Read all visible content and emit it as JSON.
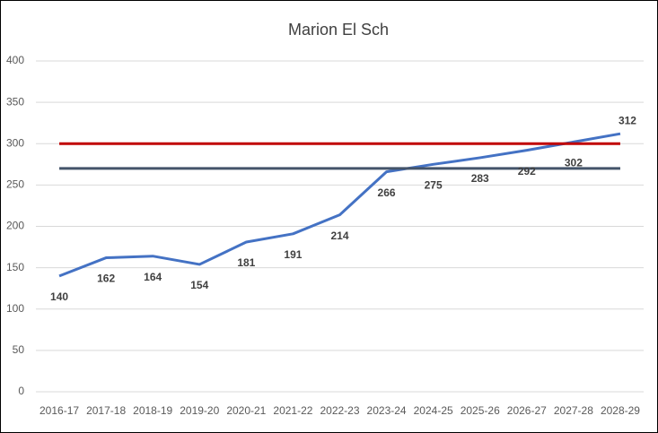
{
  "chart_data": {
    "type": "line",
    "title": "Marion El Sch",
    "categories": [
      "2016-17",
      "2017-18",
      "2018-19",
      "2019-20",
      "2020-21",
      "2021-22",
      "2022-23",
      "2023-24",
      "2024-25",
      "2025-26",
      "2026-27",
      "2027-28",
      "2028-29"
    ],
    "series": [
      {
        "color": "#4472c4",
        "values": [
          140,
          162,
          164,
          154,
          181,
          191,
          214,
          266,
          275,
          283,
          292,
          302,
          312
        ],
        "data_labels": true
      },
      {
        "color": "#c00000",
        "values": [
          300,
          300,
          300,
          300,
          300,
          300,
          300,
          300,
          300,
          300,
          300,
          300,
          300
        ]
      },
      {
        "color": "#44546a",
        "values": [
          270,
          270,
          270,
          270,
          270,
          270,
          270,
          270,
          270,
          270,
          270,
          270,
          270
        ]
      }
    ],
    "ylim": [
      0,
      400
    ],
    "yticks": [
      0,
      50,
      100,
      150,
      200,
      250,
      300,
      350,
      400
    ],
    "grid": true
  }
}
